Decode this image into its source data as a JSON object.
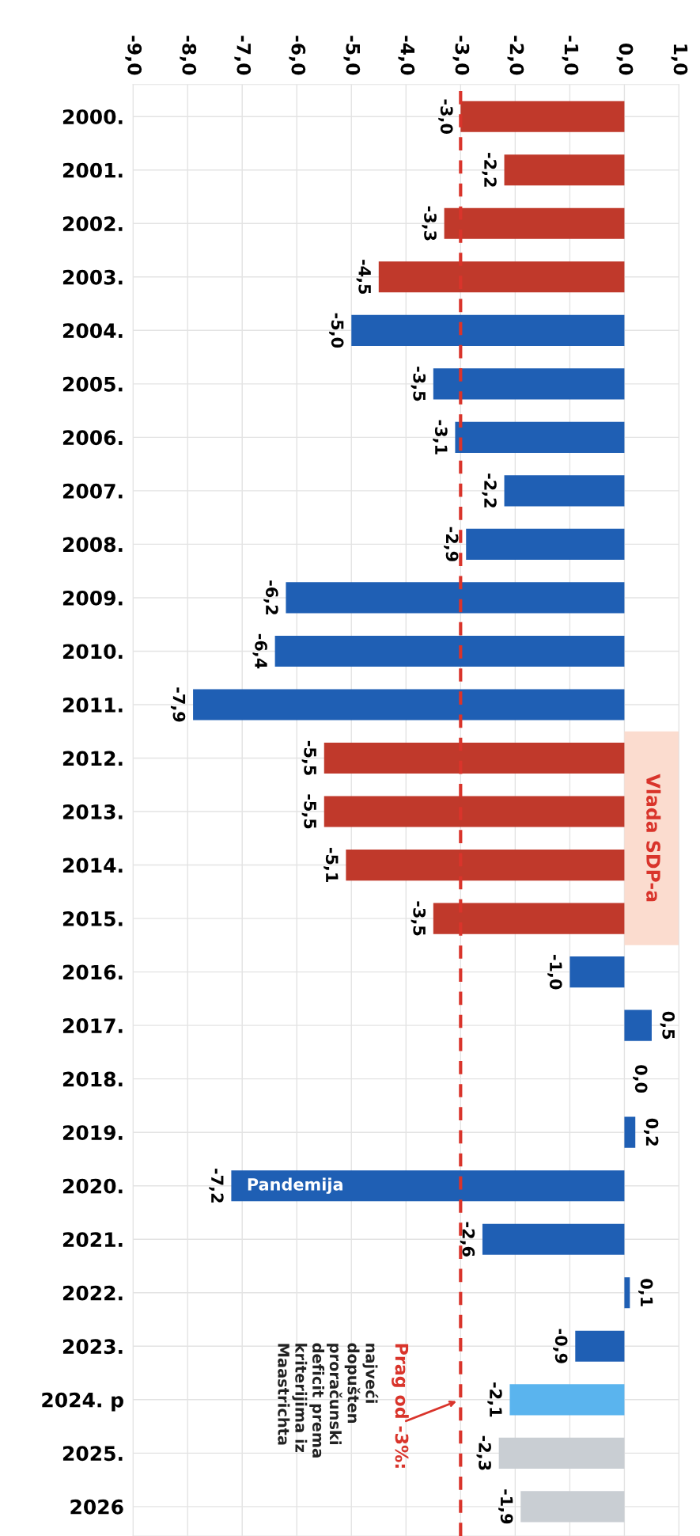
{
  "chart_data": {
    "type": "bar",
    "orientation": "horizontal",
    "categories": [
      "2000.",
      "2001.",
      "2002.",
      "2003.",
      "2004.",
      "2005.",
      "2006.",
      "2007.",
      "2008.",
      "2009.",
      "2010.",
      "2011.",
      "2012.",
      "2013.",
      "2014.",
      "2015.",
      "2016.",
      "2017.",
      "2018.",
      "2019.",
      "2020.",
      "2021.",
      "2022.",
      "2023.",
      "2024. p",
      "2025.",
      "2026"
    ],
    "values": [
      -3.0,
      -2.2,
      -3.3,
      -4.5,
      -5.0,
      -3.5,
      -3.1,
      -2.2,
      -2.9,
      -6.2,
      -6.4,
      -7.9,
      -5.5,
      -5.5,
      -5.1,
      -3.5,
      -1.0,
      0.5,
      0.0,
      0.2,
      -7.2,
      -2.6,
      0.1,
      -0.9,
      -2.1,
      -2.3,
      -1.9
    ],
    "value_labels": [
      "-3,0",
      "-2,2",
      "-3,3",
      "-4,5",
      "-5,0",
      "-3,5",
      "-3,1",
      "-2,2",
      "-2,9",
      "-6,2",
      "-6,4",
      "-7,9",
      "-5,5",
      "-5,5",
      "-5,1",
      "-3,5",
      "-1,0",
      "0,5",
      "0,0",
      "0,2",
      "-7,2",
      "-2,6",
      "0,1",
      "-0,9",
      "-2,1",
      "-2,3",
      "-1,9"
    ],
    "colors": [
      "#c0392b",
      "#c0392b",
      "#c0392b",
      "#c0392b",
      "#1f5fb4",
      "#1f5fb4",
      "#1f5fb4",
      "#1f5fb4",
      "#1f5fb4",
      "#1f5fb4",
      "#1f5fb4",
      "#1f5fb4",
      "#c0392b",
      "#c0392b",
      "#c0392b",
      "#c0392b",
      "#1f5fb4",
      "#1f5fb4",
      "#1f5fb4",
      "#1f5fb4",
      "#1f5fb4",
      "#1f5fb4",
      "#1f5fb4",
      "#1f5fb4",
      "#5ab4ee",
      "#c9ced3",
      "#c9ced3"
    ],
    "xlim": [
      -9,
      1
    ],
    "xticks": [
      {
        "value": -9,
        "label": "-9,0"
      },
      {
        "value": -8,
        "label": "-8,0"
      },
      {
        "value": -7,
        "label": "-7,0"
      },
      {
        "value": -6,
        "label": "-6,0"
      },
      {
        "value": -5,
        "label": "-5,0"
      },
      {
        "value": -4,
        "label": "-4,0"
      },
      {
        "value": -3,
        "label": "-3,0"
      },
      {
        "value": -2,
        "label": "-2,0"
      },
      {
        "value": -1,
        "label": "-1,0"
      },
      {
        "value": 0,
        "label": "0,0"
      },
      {
        "value": 1,
        "label": "1,0"
      }
    ],
    "ref_lines": [
      {
        "axis": "x",
        "value": -3.0,
        "color": "#d9342b",
        "line_style": "dashed"
      }
    ],
    "bands": [
      {
        "axis": "y",
        "from": "2012.",
        "to": "2015.",
        "label": "Vlada SDP-a",
        "color": "#fbdccf"
      }
    ],
    "annotations": [
      "Prag od -3%:",
      "najveći\ndopušten\nproračunski\ndeficit prema\nkriterijima iz\nMaastrichta",
      {
        "text": "Pandemija",
        "x": -7.2,
        "y": "2020."
      }
    ],
    "grid": true
  }
}
